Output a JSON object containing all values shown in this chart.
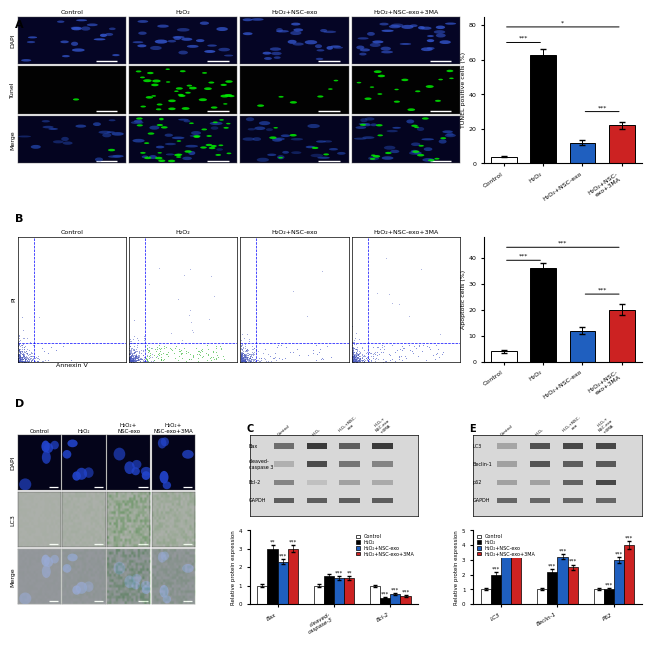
{
  "panel_A_bar": {
    "categories": [
      "Control",
      "H₂O₂",
      "H₂O₂+NSC-exo",
      "H₂O₂+NSC-exo+3MA"
    ],
    "values": [
      4,
      63,
      12,
      22
    ],
    "errors": [
      0.5,
      3,
      1.5,
      2
    ],
    "ylabel": "TUNEL positive cells (%)",
    "ylim": [
      0,
      85
    ],
    "yticks": [
      0,
      20,
      40,
      60,
      80
    ]
  },
  "panel_B_bar": {
    "categories": [
      "Control",
      "H₂O₂",
      "H₂O₂+NSC-exo",
      "H₂O₂+NSC-exo+3MA"
    ],
    "values": [
      4,
      36,
      12,
      20
    ],
    "errors": [
      0.5,
      2,
      1.5,
      2
    ],
    "ylabel": "Apoptotic cells (%)",
    "ylim": [
      0,
      48
    ],
    "yticks": [
      0,
      10,
      20,
      30,
      40
    ]
  },
  "panel_C_bar": {
    "proteins": [
      "Bax",
      "cleaved-\ncaspase-3",
      "Bcl-2"
    ],
    "values_by_group": {
      "Control": [
        1.0,
        1.0,
        1.0
      ],
      "H2O2": [
        3.0,
        1.5,
        0.35
      ],
      "H2O2_NSC": [
        2.3,
        1.4,
        0.55
      ],
      "H2O2_NSC_3MA": [
        3.0,
        1.4,
        0.45
      ]
    },
    "errors_by_group": {
      "Control": [
        0.08,
        0.08,
        0.06
      ],
      "H2O2": [
        0.18,
        0.12,
        0.04
      ],
      "H2O2_NSC": [
        0.15,
        0.12,
        0.05
      ],
      "H2O2_NSC_3MA": [
        0.18,
        0.12,
        0.04
      ]
    },
    "ylabel": "Relative protein expression",
    "ylim": [
      0,
      4
    ],
    "yticks": [
      0,
      1,
      2,
      3,
      4
    ]
  },
  "panel_E_bar": {
    "proteins": [
      "LC3",
      "Beclin-1",
      "P62"
    ],
    "values_by_group": {
      "Control": [
        1.0,
        1.0,
        1.0
      ],
      "H2O2": [
        2.0,
        2.2,
        1.0
      ],
      "H2O2_NSC": [
        3.9,
        3.2,
        3.0
      ],
      "H2O2_NSC_3MA": [
        3.8,
        2.5,
        4.0
      ]
    },
    "errors_by_group": {
      "Control": [
        0.08,
        0.08,
        0.06
      ],
      "H2O2": [
        0.15,
        0.15,
        0.08
      ],
      "H2O2_NSC": [
        0.2,
        0.18,
        0.2
      ],
      "H2O2_NSC_3MA": [
        0.2,
        0.18,
        0.25
      ]
    },
    "ylabel": "Relative protein expression",
    "ylim": [
      0,
      5
    ],
    "yticks": [
      0,
      1,
      2,
      3,
      4,
      5
    ]
  },
  "legend_labels": [
    "Control",
    "H₂O₂",
    "H₂O₂+NSC-exo",
    "H₂O₂+NSC-exo+3MA"
  ],
  "bar_colors": [
    "white",
    "black",
    "#1f5fbf",
    "#cc2222"
  ],
  "bar_edge_color": "black",
  "col_labels_ABCD": [
    "Control",
    "H₂O₂",
    "H₂O₂+NSC-exo",
    "H₂O₂+NSC-exo+3MA"
  ],
  "row_labels_A": [
    "DAPI",
    "Tunel",
    "Merge"
  ],
  "row_labels_D": [
    "DAPI",
    "LC3",
    "Merge"
  ],
  "wb_labels_C": [
    "Bax",
    "cleaved-\ncaspase 3",
    "Bcl-2",
    "GAPDH"
  ],
  "wb_labels_E": [
    "LC3",
    "Beclin-1",
    "p62",
    "GAPDH"
  ],
  "wb_col_labels": [
    "Control",
    "H₂O₂",
    "H₂O₂+NSC-exo",
    "H₂O₂+NSC-exo+3MA"
  ]
}
